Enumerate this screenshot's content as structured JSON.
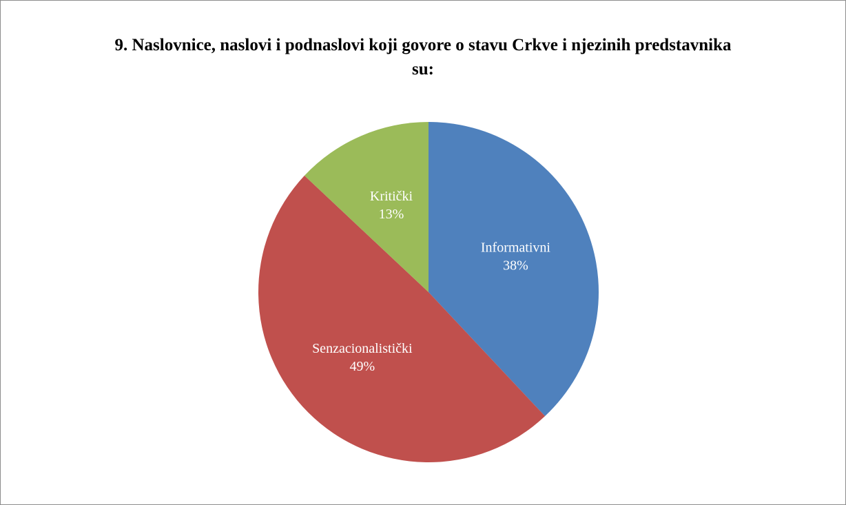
{
  "chart_data": {
    "type": "pie",
    "title": "9. Naslovnice, naslovi i podnaslovi koji govore o stavu Crkve i njezinih predstavnika su:",
    "categories": [
      "Informativni",
      "Senzacionalistički",
      "Kritički"
    ],
    "values": [
      38,
      49,
      13
    ],
    "value_labels": [
      "38%",
      "49%",
      "13%"
    ],
    "colors": [
      "#4f81bd",
      "#c0504d",
      "#9bbb59"
    ]
  }
}
